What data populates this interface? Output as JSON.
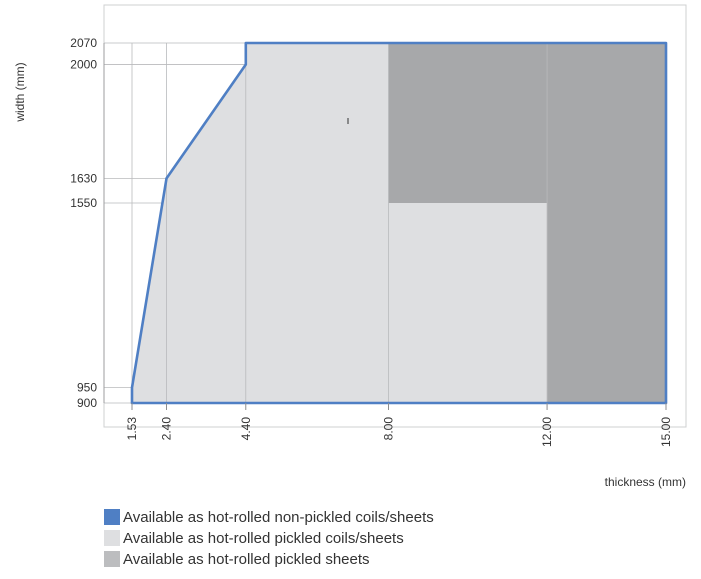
{
  "chart_data": {
    "type": "area",
    "xlabel": "thickness (mm)",
    "ylabel": "width (mm)",
    "xlim": [
      1.53,
      15.0
    ],
    "ylim": [
      900,
      2070
    ],
    "x_ticks": [
      {
        "value": 1.53,
        "label": "1.53"
      },
      {
        "value": 2.4,
        "label": "2.40"
      },
      {
        "value": 4.4,
        "label": "4.40"
      },
      {
        "value": 8.0,
        "label": "8.00"
      },
      {
        "value": 12.0,
        "label": "12.00"
      },
      {
        "value": 15.0,
        "label": "15.00"
      }
    ],
    "y_ticks": [
      {
        "value": 900,
        "label": "900"
      },
      {
        "value": 950,
        "label": "950"
      },
      {
        "value": 1550,
        "label": "1550"
      },
      {
        "value": 1630,
        "label": "1630"
      },
      {
        "value": 2000,
        "label": "2000"
      },
      {
        "value": 2070,
        "label": "2070"
      }
    ],
    "series": [
      {
        "name": "Available as hot-rolled non-pickled coils/sheets",
        "color": "#4f7fc4",
        "style": "outline",
        "polygon": [
          [
            1.53,
            900
          ],
          [
            1.53,
            950
          ],
          [
            2.4,
            1630
          ],
          [
            4.4,
            2000
          ],
          [
            4.4,
            2070
          ],
          [
            15.0,
            2070
          ],
          [
            15.0,
            900
          ]
        ]
      },
      {
        "name": "Available as hot-rolled pickled coils/sheets",
        "color": "#dedfe1",
        "style": "fill",
        "polygon": [
          [
            1.53,
            900
          ],
          [
            1.53,
            950
          ],
          [
            2.4,
            1630
          ],
          [
            4.4,
            2000
          ],
          [
            4.4,
            2070
          ],
          [
            8.0,
            2070
          ],
          [
            8.0,
            1550
          ],
          [
            12.0,
            1550
          ],
          [
            12.0,
            900
          ]
        ]
      },
      {
        "name": "Available as hot-rolled pickled sheets",
        "color": "#a7a8aa",
        "style": "fill",
        "polygon": [
          [
            8.0,
            2070
          ],
          [
            15.0,
            2070
          ],
          [
            15.0,
            900
          ],
          [
            12.0,
            900
          ],
          [
            12.0,
            1550
          ],
          [
            8.0,
            1550
          ]
        ]
      }
    ],
    "legend": {
      "position": "bottom-left",
      "entries": [
        {
          "label": "Available as hot-rolled non-pickled coils/sheets",
          "color": "#4f7fc4"
        },
        {
          "label": "Available as hot-rolled pickled coils/sheets",
          "color": "#dedfe1"
        },
        {
          "label": "Available as hot-rolled pickled sheets",
          "color": "#bcbdbf"
        }
      ]
    },
    "grid": true
  }
}
